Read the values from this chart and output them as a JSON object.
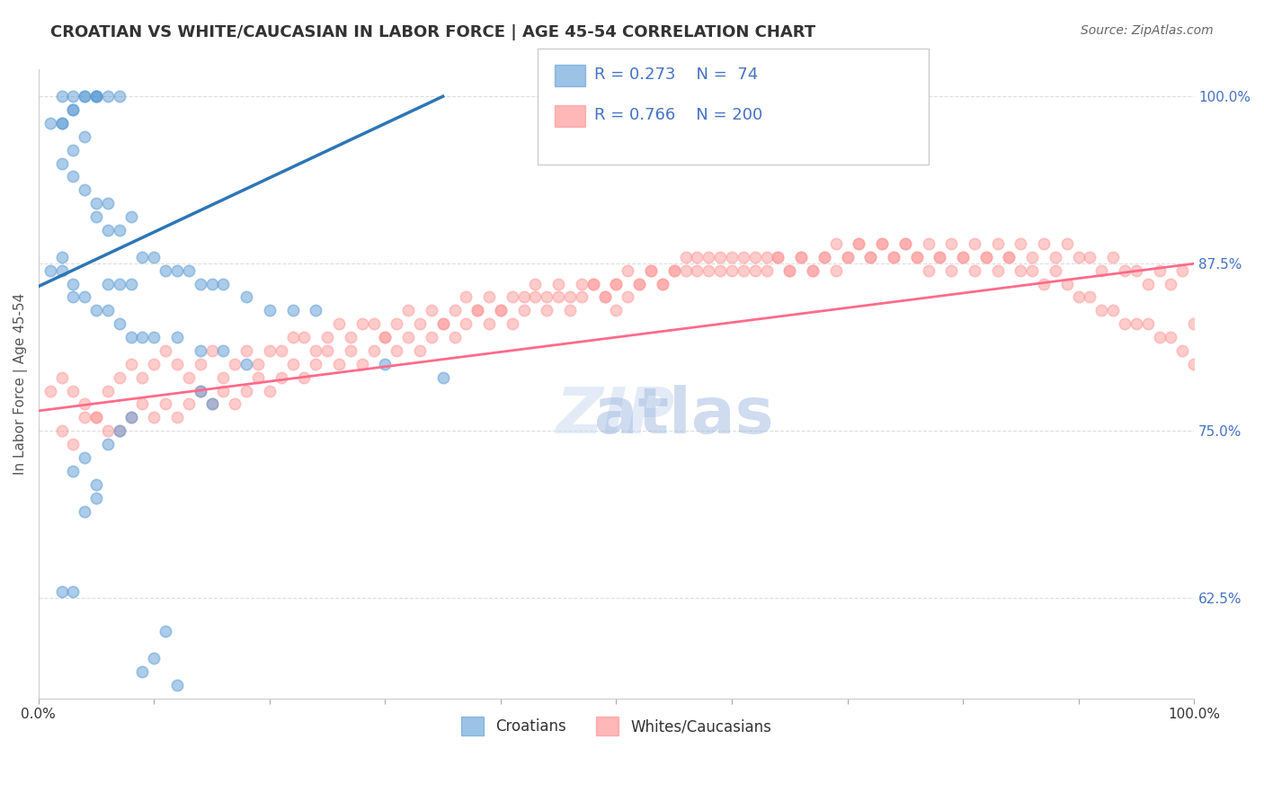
{
  "title": "CROATIAN VS WHITE/CAUCASIAN IN LABOR FORCE | AGE 45-54 CORRELATION CHART",
  "source": "Source: ZipAtlas.com",
  "xlabel": "",
  "ylabel": "In Labor Force | Age 45-54",
  "xlim": [
    0.0,
    1.0
  ],
  "ylim": [
    0.55,
    1.02
  ],
  "yticks": [
    0.625,
    0.75,
    0.875,
    1.0
  ],
  "ytick_labels": [
    "62.5%",
    "75.0%",
    "87.5%",
    "100.0%"
  ],
  "xticks": [
    0.0,
    0.1,
    0.2,
    0.3,
    0.4,
    0.5,
    0.6,
    0.7,
    0.8,
    0.9,
    1.0
  ],
  "xtick_labels": [
    "0.0%",
    "",
    "",
    "",
    "",
    "",
    "",
    "",
    "",
    "",
    "100.0%"
  ],
  "legend_r_blue": "0.273",
  "legend_n_blue": "74",
  "legend_r_pink": "0.766",
  "legend_n_pink": "200",
  "legend_label_blue": "Croatians",
  "legend_label_pink": "Whites/Caucasians",
  "blue_color": "#5B9BD5",
  "pink_color": "#FF9999",
  "blue_line_color": "#2E75B6",
  "pink_line_color": "#FF6B8A",
  "title_color": "#333333",
  "axis_label_color": "#555555",
  "tick_color_right": "#4472C4",
  "watermark_text": "ZIPatlas",
  "watermark_zip_color": "#C8D8F0",
  "watermark_atlas_color": "#A0B8E0",
  "blue_scatter": {
    "x": [
      0.02,
      0.03,
      0.04,
      0.05,
      0.03,
      0.05,
      0.06,
      0.07,
      0.04,
      0.05,
      0.02,
      0.03,
      0.02,
      0.01,
      0.04,
      0.03,
      0.02,
      0.03,
      0.04,
      0.05,
      0.06,
      0.05,
      0.07,
      0.08,
      0.06,
      0.09,
      0.1,
      0.11,
      0.12,
      0.13,
      0.14,
      0.15,
      0.16,
      0.18,
      0.2,
      0.22,
      0.24,
      0.08,
      0.06,
      0.07,
      0.03,
      0.04,
      0.05,
      0.06,
      0.07,
      0.08,
      0.09,
      0.1,
      0.12,
      0.14,
      0.16,
      0.18,
      0.3,
      0.35,
      0.02,
      0.01,
      0.02,
      0.03,
      0.14,
      0.15,
      0.02,
      0.03,
      0.04,
      0.05,
      0.05,
      0.04,
      0.03,
      0.06,
      0.07,
      0.08,
      0.09,
      0.1,
      0.11,
      0.12
    ],
    "y": [
      0.98,
      0.99,
      1.0,
      1.0,
      1.0,
      1.0,
      1.0,
      1.0,
      1.0,
      1.0,
      1.0,
      0.99,
      0.98,
      0.98,
      0.97,
      0.96,
      0.95,
      0.94,
      0.93,
      0.92,
      0.92,
      0.91,
      0.9,
      0.91,
      0.9,
      0.88,
      0.88,
      0.87,
      0.87,
      0.87,
      0.86,
      0.86,
      0.86,
      0.85,
      0.84,
      0.84,
      0.84,
      0.86,
      0.86,
      0.86,
      0.85,
      0.85,
      0.84,
      0.84,
      0.83,
      0.82,
      0.82,
      0.82,
      0.82,
      0.81,
      0.81,
      0.8,
      0.8,
      0.79,
      0.88,
      0.87,
      0.87,
      0.86,
      0.78,
      0.77,
      0.63,
      0.63,
      0.69,
      0.7,
      0.71,
      0.73,
      0.72,
      0.74,
      0.75,
      0.76,
      0.57,
      0.58,
      0.6,
      0.56
    ]
  },
  "pink_scatter": {
    "x": [
      0.01,
      0.02,
      0.03,
      0.04,
      0.05,
      0.06,
      0.07,
      0.08,
      0.09,
      0.1,
      0.11,
      0.12,
      0.13,
      0.14,
      0.15,
      0.16,
      0.17,
      0.18,
      0.19,
      0.2,
      0.21,
      0.22,
      0.23,
      0.24,
      0.25,
      0.26,
      0.27,
      0.28,
      0.29,
      0.3,
      0.31,
      0.32,
      0.33,
      0.34,
      0.35,
      0.36,
      0.37,
      0.38,
      0.39,
      0.4,
      0.41,
      0.42,
      0.43,
      0.44,
      0.45,
      0.46,
      0.47,
      0.48,
      0.49,
      0.5,
      0.51,
      0.52,
      0.53,
      0.54,
      0.55,
      0.56,
      0.57,
      0.58,
      0.59,
      0.6,
      0.61,
      0.62,
      0.63,
      0.64,
      0.65,
      0.66,
      0.67,
      0.68,
      0.69,
      0.7,
      0.71,
      0.72,
      0.73,
      0.74,
      0.75,
      0.76,
      0.77,
      0.78,
      0.79,
      0.8,
      0.81,
      0.82,
      0.83,
      0.84,
      0.85,
      0.86,
      0.87,
      0.88,
      0.89,
      0.9,
      0.91,
      0.92,
      0.93,
      0.94,
      0.95,
      0.96,
      0.97,
      0.98,
      0.99,
      1.0,
      0.02,
      0.03,
      0.04,
      0.05,
      0.06,
      0.07,
      0.08,
      0.09,
      0.1,
      0.11,
      0.12,
      0.13,
      0.14,
      0.15,
      0.16,
      0.17,
      0.18,
      0.19,
      0.2,
      0.21,
      0.22,
      0.23,
      0.24,
      0.25,
      0.26,
      0.27,
      0.28,
      0.29,
      0.3,
      0.31,
      0.32,
      0.33,
      0.34,
      0.35,
      0.36,
      0.37,
      0.38,
      0.39,
      0.4,
      0.41,
      0.42,
      0.43,
      0.44,
      0.45,
      0.46,
      0.47,
      0.48,
      0.49,
      0.5,
      0.51,
      0.52,
      0.53,
      0.54,
      0.55,
      0.56,
      0.57,
      0.58,
      0.59,
      0.6,
      0.61,
      0.62,
      0.63,
      0.64,
      0.65,
      0.66,
      0.67,
      0.68,
      0.69,
      0.7,
      0.71,
      0.72,
      0.73,
      0.74,
      0.75,
      0.76,
      0.77,
      0.78,
      0.79,
      0.8,
      0.81,
      0.82,
      0.83,
      0.84,
      0.85,
      0.86,
      0.87,
      0.88,
      0.89,
      0.9,
      0.91,
      0.92,
      0.93,
      0.94,
      0.95,
      0.96,
      0.97,
      0.98,
      0.99,
      1.0,
      0.5
    ],
    "y": [
      0.78,
      0.79,
      0.78,
      0.77,
      0.76,
      0.78,
      0.79,
      0.8,
      0.79,
      0.8,
      0.81,
      0.8,
      0.79,
      0.8,
      0.81,
      0.79,
      0.8,
      0.81,
      0.8,
      0.81,
      0.81,
      0.82,
      0.82,
      0.81,
      0.82,
      0.83,
      0.82,
      0.83,
      0.83,
      0.82,
      0.83,
      0.84,
      0.83,
      0.84,
      0.83,
      0.84,
      0.85,
      0.84,
      0.85,
      0.84,
      0.85,
      0.85,
      0.86,
      0.85,
      0.86,
      0.85,
      0.86,
      0.86,
      0.85,
      0.86,
      0.87,
      0.86,
      0.87,
      0.86,
      0.87,
      0.87,
      0.88,
      0.87,
      0.88,
      0.87,
      0.88,
      0.87,
      0.88,
      0.88,
      0.87,
      0.88,
      0.87,
      0.88,
      0.89,
      0.88,
      0.89,
      0.88,
      0.89,
      0.88,
      0.89,
      0.88,
      0.89,
      0.88,
      0.89,
      0.88,
      0.89,
      0.88,
      0.89,
      0.88,
      0.89,
      0.88,
      0.89,
      0.88,
      0.89,
      0.88,
      0.88,
      0.87,
      0.88,
      0.87,
      0.87,
      0.86,
      0.87,
      0.86,
      0.87,
      0.83,
      0.75,
      0.74,
      0.76,
      0.76,
      0.75,
      0.75,
      0.76,
      0.77,
      0.76,
      0.77,
      0.76,
      0.77,
      0.78,
      0.77,
      0.78,
      0.77,
      0.78,
      0.79,
      0.78,
      0.79,
      0.8,
      0.79,
      0.8,
      0.81,
      0.8,
      0.81,
      0.8,
      0.81,
      0.82,
      0.81,
      0.82,
      0.81,
      0.82,
      0.83,
      0.82,
      0.83,
      0.84,
      0.83,
      0.84,
      0.83,
      0.84,
      0.85,
      0.84,
      0.85,
      0.84,
      0.85,
      0.86,
      0.85,
      0.86,
      0.85,
      0.86,
      0.87,
      0.86,
      0.87,
      0.88,
      0.87,
      0.88,
      0.87,
      0.88,
      0.87,
      0.88,
      0.87,
      0.88,
      0.87,
      0.88,
      0.87,
      0.88,
      0.87,
      0.88,
      0.89,
      0.88,
      0.89,
      0.88,
      0.89,
      0.88,
      0.87,
      0.88,
      0.87,
      0.88,
      0.87,
      0.88,
      0.87,
      0.88,
      0.87,
      0.87,
      0.86,
      0.87,
      0.86,
      0.85,
      0.85,
      0.84,
      0.84,
      0.83,
      0.83,
      0.83,
      0.82,
      0.82,
      0.81,
      0.8,
      0.84
    ]
  },
  "blue_line": {
    "x_start": 0.0,
    "x_end": 0.35,
    "y_start": 0.858,
    "y_end": 1.0
  },
  "pink_line": {
    "x_start": 0.0,
    "x_end": 1.0,
    "y_start": 0.765,
    "y_end": 0.875
  },
  "background_color": "#ffffff",
  "grid_color": "#dddddd",
  "scatter_size": 80,
  "scatter_alpha": 0.5,
  "scatter_linewidth": 1.2
}
